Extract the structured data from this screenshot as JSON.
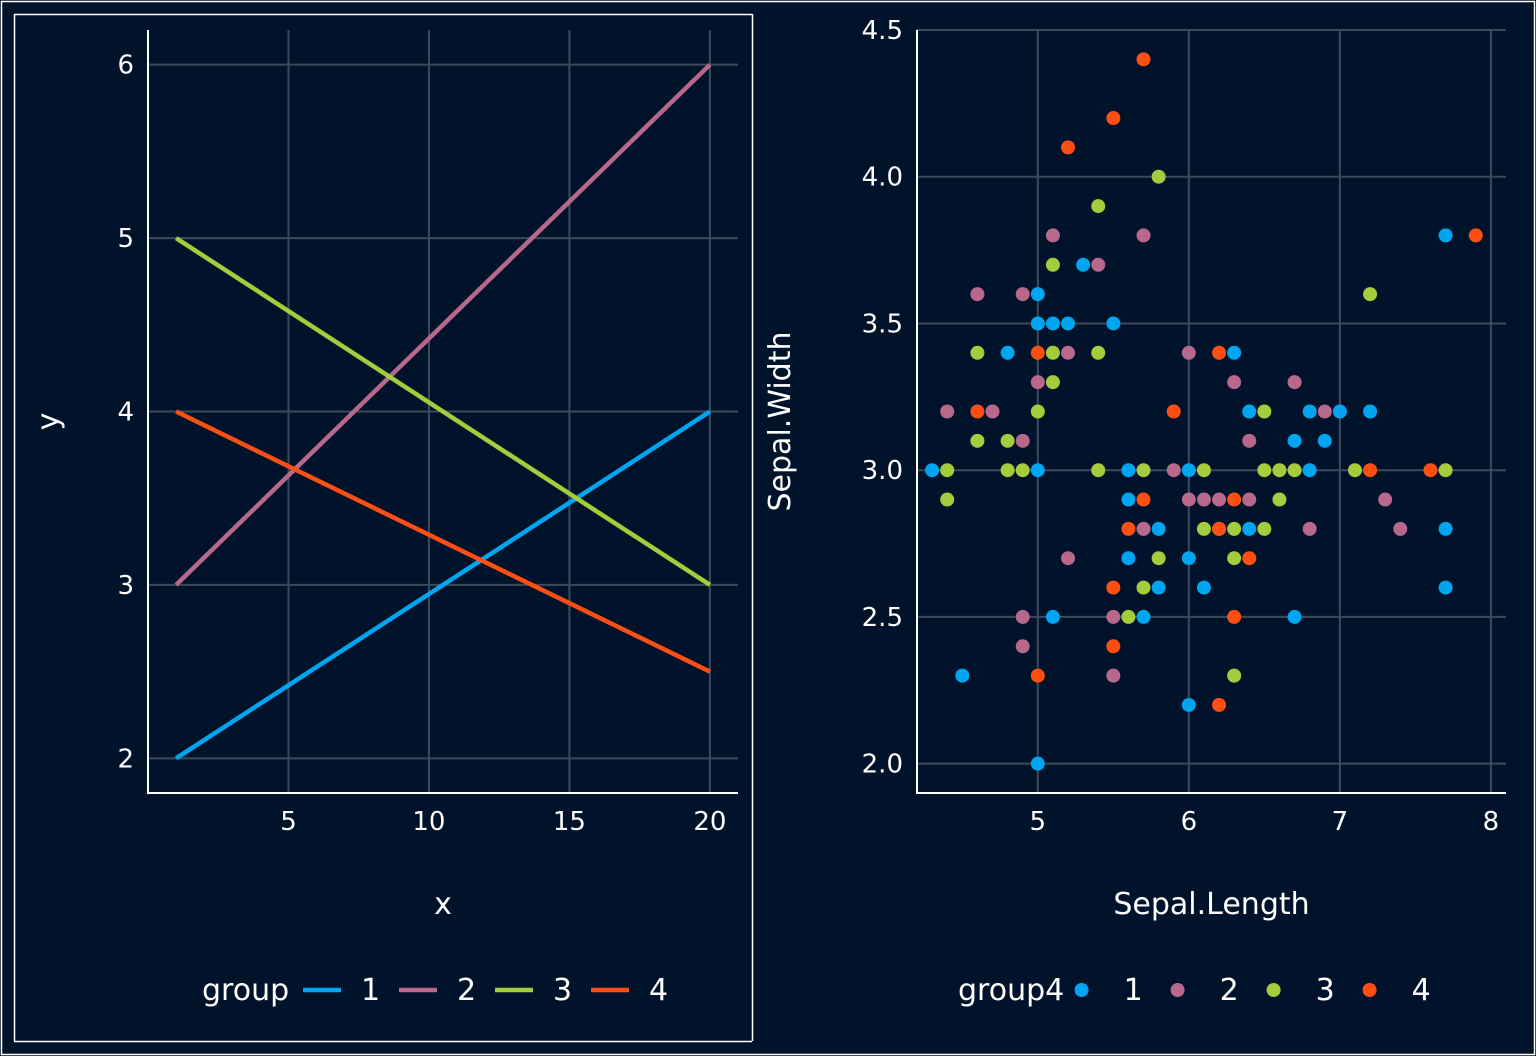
{
  "colors": {
    "background": "#01132a",
    "grid": "#3d4a5c",
    "axis": "#ffffff",
    "text": "#ffffff",
    "group_palette": [
      "#00a5f2",
      "#b8688c",
      "#a4cc3d",
      "#fd4f13"
    ]
  },
  "chart_data": [
    {
      "type": "line",
      "xlabel": "x",
      "ylabel": "y",
      "xlim": [
        0,
        21
      ],
      "ylim": [
        1.8,
        6.2
      ],
      "xticks": [
        5,
        10,
        15,
        20
      ],
      "yticks": [
        2,
        3,
        4,
        5,
        6
      ],
      "grid": true,
      "legend_title": "group",
      "legend_position": "bottom",
      "series": [
        {
          "name": "1",
          "x": [
            1,
            20
          ],
          "y": [
            2,
            4
          ]
        },
        {
          "name": "2",
          "x": [
            1,
            20
          ],
          "y": [
            3,
            6
          ]
        },
        {
          "name": "3",
          "x": [
            1,
            20
          ],
          "y": [
            5,
            3
          ]
        },
        {
          "name": "4",
          "x": [
            1,
            20
          ],
          "y": [
            4,
            2.5
          ]
        }
      ]
    },
    {
      "type": "scatter",
      "xlabel": "Sepal.Length",
      "ylabel": "Sepal.Width",
      "xlim": [
        4.2,
        8.1
      ],
      "ylim": [
        1.9,
        4.5
      ],
      "xticks": [
        5,
        6,
        7,
        8
      ],
      "yticks": [
        2.0,
        2.5,
        3.0,
        3.5,
        4.0,
        4.5
      ],
      "ytick_labels": [
        "2.0",
        "2.5",
        "3.0",
        "3.5",
        "4.0",
        "4.5"
      ],
      "grid": true,
      "legend_title": "group4",
      "legend_position": "bottom",
      "series": [
        {
          "name": "1",
          "points": [
            [
              4.3,
              3.0
            ],
            [
              4.5,
              2.3
            ],
            [
              4.8,
              3.4
            ],
            [
              5.0,
              3.6
            ],
            [
              5.0,
              3.5
            ],
            [
              5.0,
              3.0
            ],
            [
              5.0,
              2.0
            ],
            [
              5.1,
              3.5
            ],
            [
              5.1,
              2.5
            ],
            [
              5.2,
              3.5
            ],
            [
              5.3,
              3.7
            ],
            [
              5.5,
              3.5
            ],
            [
              5.6,
              3.0
            ],
            [
              5.6,
              2.9
            ],
            [
              5.6,
              2.7
            ],
            [
              5.7,
              2.5
            ],
            [
              5.8,
              2.8
            ],
            [
              5.8,
              2.6
            ],
            [
              6.0,
              3.0
            ],
            [
              6.0,
              2.7
            ],
            [
              6.0,
              2.2
            ],
            [
              6.1,
              2.6
            ],
            [
              6.3,
              3.4
            ],
            [
              6.4,
              3.2
            ],
            [
              6.4,
              2.8
            ],
            [
              6.7,
              3.1
            ],
            [
              6.7,
              2.5
            ],
            [
              6.8,
              3.2
            ],
            [
              6.8,
              3.0
            ],
            [
              6.9,
              3.1
            ],
            [
              7.0,
              3.2
            ],
            [
              7.2,
              3.2
            ],
            [
              7.7,
              3.8
            ],
            [
              7.7,
              2.8
            ],
            [
              7.7,
              2.6
            ]
          ]
        },
        {
          "name": "2",
          "points": [
            [
              4.4,
              3.2
            ],
            [
              4.6,
              3.6
            ],
            [
              4.7,
              3.2
            ],
            [
              4.9,
              3.6
            ],
            [
              4.9,
              3.1
            ],
            [
              4.9,
              2.5
            ],
            [
              4.9,
              2.4
            ],
            [
              5.0,
              3.3
            ],
            [
              5.1,
              3.8
            ],
            [
              5.2,
              3.4
            ],
            [
              5.2,
              2.7
            ],
            [
              5.4,
              3.7
            ],
            [
              5.5,
              2.5
            ],
            [
              5.5,
              2.3
            ],
            [
              5.7,
              3.8
            ],
            [
              5.7,
              2.8
            ],
            [
              5.9,
              3.0
            ],
            [
              6.0,
              3.4
            ],
            [
              6.0,
              2.9
            ],
            [
              6.1,
              2.9
            ],
            [
              6.2,
              2.9
            ],
            [
              6.3,
              3.3
            ],
            [
              6.4,
              3.1
            ],
            [
              6.4,
              2.9
            ],
            [
              6.7,
              3.3
            ],
            [
              6.8,
              2.8
            ],
            [
              6.9,
              3.2
            ],
            [
              7.3,
              2.9
            ],
            [
              7.4,
              2.8
            ]
          ]
        },
        {
          "name": "3",
          "points": [
            [
              4.4,
              3.0
            ],
            [
              4.4,
              2.9
            ],
            [
              4.6,
              3.4
            ],
            [
              4.6,
              3.1
            ],
            [
              4.8,
              3.1
            ],
            [
              4.8,
              3.0
            ],
            [
              4.9,
              3.0
            ],
            [
              5.0,
              3.2
            ],
            [
              5.1,
              3.7
            ],
            [
              5.1,
              3.4
            ],
            [
              5.1,
              3.3
            ],
            [
              5.4,
              3.9
            ],
            [
              5.4,
              3.4
            ],
            [
              5.4,
              3.0
            ],
            [
              5.6,
              2.5
            ],
            [
              5.7,
              3.0
            ],
            [
              5.7,
              2.6
            ],
            [
              5.8,
              4.0
            ],
            [
              5.8,
              2.7
            ],
            [
              6.1,
              3.0
            ],
            [
              6.1,
              2.8
            ],
            [
              6.2,
              2.8
            ],
            [
              6.3,
              2.8
            ],
            [
              6.3,
              2.7
            ],
            [
              6.3,
              2.3
            ],
            [
              6.5,
              3.2
            ],
            [
              6.5,
              3.0
            ],
            [
              6.5,
              2.8
            ],
            [
              6.6,
              3.0
            ],
            [
              6.6,
              2.9
            ],
            [
              6.7,
              3.0
            ],
            [
              7.1,
              3.0
            ],
            [
              7.2,
              3.6
            ],
            [
              7.7,
              3.0
            ]
          ]
        },
        {
          "name": "4",
          "points": [
            [
              4.6,
              3.2
            ],
            [
              5.0,
              3.4
            ],
            [
              5.0,
              2.3
            ],
            [
              5.2,
              4.1
            ],
            [
              5.5,
              4.2
            ],
            [
              5.5,
              2.6
            ],
            [
              5.5,
              2.4
            ],
            [
              5.6,
              2.8
            ],
            [
              5.7,
              4.4
            ],
            [
              5.7,
              2.9
            ],
            [
              5.9,
              3.2
            ],
            [
              6.2,
              3.4
            ],
            [
              6.2,
              2.8
            ],
            [
              6.2,
              2.2
            ],
            [
              6.3,
              2.9
            ],
            [
              6.3,
              2.5
            ],
            [
              6.4,
              2.7
            ],
            [
              7.2,
              3.0
            ],
            [
              7.6,
              3.0
            ],
            [
              7.9,
              3.8
            ]
          ]
        }
      ]
    }
  ]
}
